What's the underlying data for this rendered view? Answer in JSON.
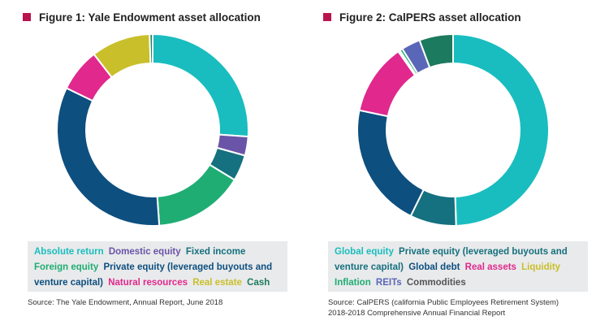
{
  "chart_data": [
    {
      "type": "donut",
      "title": "Figure 1: Yale Endowment asset allocation",
      "series": [
        {
          "name": "Absolute return",
          "value": 26.1
        },
        {
          "name": "Domestic equity",
          "value": 3.2
        },
        {
          "name": "Fixed income",
          "value": 4.4
        },
        {
          "name": "Foreign equity",
          "value": 15.2
        },
        {
          "name": "Private equity (leveraged buyouts and venture capital)",
          "value": 33.3
        },
        {
          "name": "Natural resources",
          "value": 7.3
        },
        {
          "name": "Real estate",
          "value": 10.0
        },
        {
          "name": "Cash",
          "value": 0.5
        }
      ],
      "source": "Source: The Yale Endowment, Annual Report, June 2018"
    },
    {
      "type": "donut",
      "title": "Figure 2: CalPERS asset allocation",
      "series": [
        {
          "name": "Global equity",
          "value": 49.5
        },
        {
          "name": "Private equity (leveraged buyouts and venture capital)",
          "value": 7.8
        },
        {
          "name": "Global debt",
          "value": 21.0
        },
        {
          "name": "Real assets",
          "value": 12.0
        },
        {
          "name": "Liquidity",
          "value": 0.3
        },
        {
          "name": "Inflation",
          "value": 0.5
        },
        {
          "name": "REITs",
          "value": 3.2
        },
        {
          "name": "Commodities",
          "value": 5.7
        }
      ],
      "source_lines": [
        "Source: CalPERS (california Public Employees Retirement System)",
        "2018-2018 Comprehensive Annual Financial Report"
      ]
    }
  ],
  "colors": {
    "marker": "#b8154f",
    "yale": [
      "#19bdbf",
      "#6a54a8",
      "#15707f",
      "#1fad74",
      "#0d4f7f",
      "#e0288d",
      "#c9bf2b",
      "#1c7a5e"
    ],
    "calpers": [
      "#19bdbf",
      "#15707f",
      "#0d4f7f",
      "#e0288d",
      "#c9bf2b",
      "#1fad74",
      "#5a67b8",
      "#1c7a5e"
    ],
    "yale_legend_text": [
      "#19bdbf",
      "#6a54a8",
      "#15707f",
      "#1fad74",
      "#0d4f7f",
      "#e0288d",
      "#c9bf2b",
      "#1c7a5e"
    ],
    "calpers_legend_text": [
      "#19bdbf",
      "#15707f",
      "#0d4f7f",
      "#e0288d",
      "#c9bf2b",
      "#1fad74",
      "#5a67b8",
      "#555555"
    ]
  },
  "legend_labels": {
    "yale": [
      "Absolute return",
      "Domestic equity",
      "Fixed income",
      "Foreign equity",
      "Private equity (leveraged buyouts and venture capital)",
      "Natural resources",
      "Real estate",
      "Cash"
    ],
    "calpers": [
      "Global equity",
      "Private equity (leveraged buyouts and venture capital)",
      "Global debt",
      "Real assets",
      "Liquidity",
      "Inflation",
      "REITs",
      "Commodities"
    ]
  }
}
